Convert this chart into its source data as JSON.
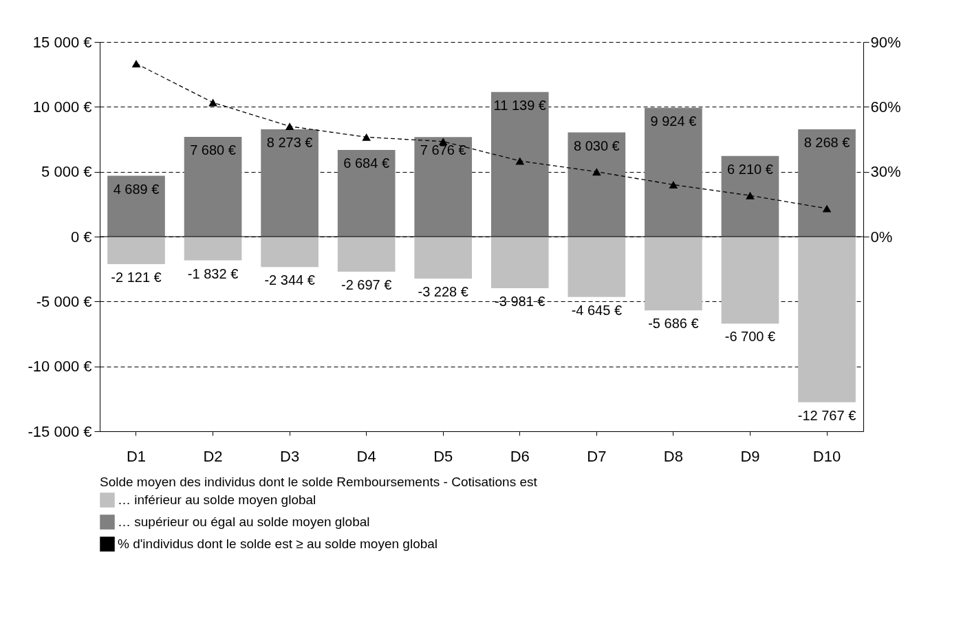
{
  "chart_data": {
    "type": "bar",
    "categories": [
      "D1",
      "D2",
      "D3",
      "D4",
      "D5",
      "D6",
      "D7",
      "D8",
      "D9",
      "D10"
    ],
    "stacked": true,
    "legend_title": "Solde moyen des individus dont le solde Remboursements - Cotisations est",
    "series": [
      {
        "name": "… inférieur au solde moyen global",
        "color": "#c0c0c0",
        "values": [
          -2121,
          -1832,
          -2344,
          -2697,
          -3228,
          -3981,
          -4645,
          -5686,
          -6700,
          -12767
        ],
        "value_labels": [
          "-2 121 €",
          "-1 832 €",
          "-2 344 €",
          "-2 697 €",
          "-3 228 €",
          "-3 981 €",
          "-4 645 €",
          "-5 686 €",
          "-6 700 €",
          "-12 767 €"
        ]
      },
      {
        "name": "… supérieur ou égal au solde moyen global",
        "color": "#808080",
        "values": [
          4689,
          7680,
          8273,
          6684,
          7676,
          11139,
          8030,
          9924,
          6210,
          8268
        ],
        "value_labels": [
          "4 689 €",
          "7 680 €",
          "8 273 €",
          "6 684 €",
          "7 676 €",
          "11 139 €",
          "8 030 €",
          "9 924 €",
          "6 210 €",
          "8 268 €"
        ]
      },
      {
        "name": "% d'individus dont le solde est ≥ au solde moyen global",
        "type": "line",
        "axis": "y2",
        "color": "#000000",
        "marker": "triangle",
        "line_style": "dashed",
        "values": [
          80,
          62,
          51,
          46,
          44,
          35,
          30,
          24,
          19,
          13
        ]
      }
    ],
    "ylim": [
      -15000,
      15000
    ],
    "yticks": [
      {
        "value": -15000,
        "label": "-15 000 €"
      },
      {
        "value": -10000,
        "label": "-10 000 €"
      },
      {
        "value": -5000,
        "label": "-5 000 €"
      },
      {
        "value": 0,
        "label": "0 €"
      },
      {
        "value": 5000,
        "label": "5 000 €"
      },
      {
        "value": 10000,
        "label": "10 000 €"
      },
      {
        "value": 15000,
        "label": "15 000 €"
      }
    ],
    "y2lim": [
      -90,
      90
    ],
    "y2ticks": [
      {
        "value": 0,
        "label": "0%"
      },
      {
        "value": 30,
        "label": "30%"
      },
      {
        "value": 60,
        "label": "60%"
      },
      {
        "value": 90,
        "label": "90%"
      }
    ],
    "grid": "y",
    "legend": "bottom"
  }
}
